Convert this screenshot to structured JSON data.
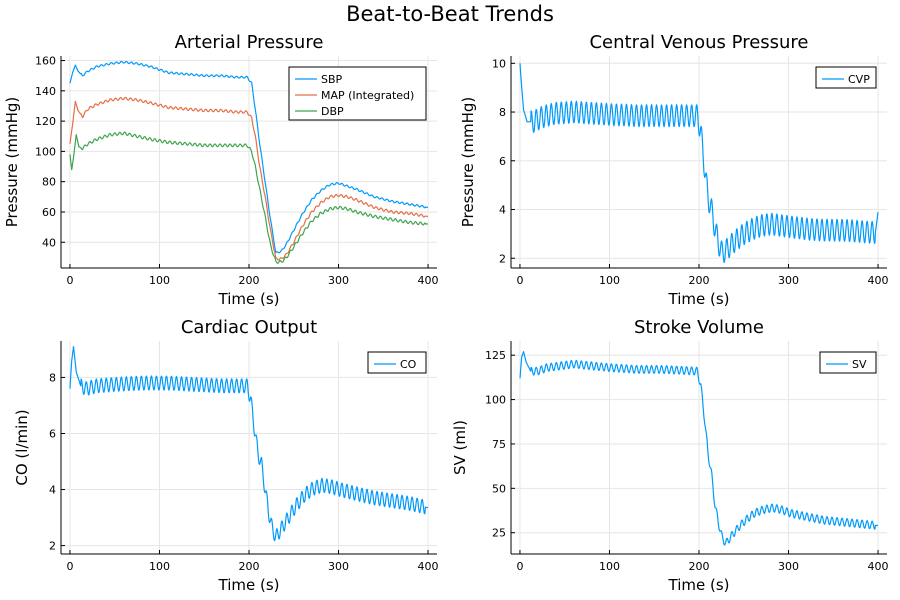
{
  "figure": {
    "title": "Beat-to-Beat Trends"
  },
  "chart_data": [
    {
      "type": "line",
      "title": "Arterial Pressure",
      "xlabel": "Time (s)",
      "ylabel": "Pressure (mmHg)",
      "xlim": [
        -10,
        410
      ],
      "ylim": [
        23,
        163
      ],
      "xticks": [
        0,
        100,
        200,
        300,
        400
      ],
      "yticks": [
        40,
        60,
        80,
        100,
        120,
        140,
        160
      ],
      "grid": true,
      "legend": "top-right",
      "series": [
        {
          "name": "SBP",
          "color": "#009AFA",
          "points": [
            [
              0,
              145
            ],
            [
              3,
              152
            ],
            [
              6,
              157
            ],
            [
              9,
              153
            ],
            [
              14,
              150
            ],
            [
              20,
              153
            ],
            [
              30,
              156
            ],
            [
              45,
              158
            ],
            [
              60,
              159
            ],
            [
              75,
              158
            ],
            [
              90,
              156
            ],
            [
              110,
              152
            ],
            [
              130,
              151
            ],
            [
              150,
              150
            ],
            [
              170,
              150
            ],
            [
              185,
              149
            ],
            [
              198,
              149
            ],
            [
              203,
              145
            ],
            [
              207,
              128
            ],
            [
              212,
              105
            ],
            [
              218,
              80
            ],
            [
              224,
              55
            ],
            [
              230,
              33
            ],
            [
              236,
              34
            ],
            [
              242,
              39
            ],
            [
              250,
              48
            ],
            [
              260,
              59
            ],
            [
              270,
              68
            ],
            [
              280,
              74
            ],
            [
              290,
              78
            ],
            [
              300,
              79
            ],
            [
              310,
              77
            ],
            [
              320,
              75
            ],
            [
              340,
              70
            ],
            [
              360,
              67
            ],
            [
              380,
              65
            ],
            [
              400,
              63
            ]
          ],
          "wiggle": 0.6
        },
        {
          "name": "MAP (Integrated)",
          "color": "#E36F47",
          "points": [
            [
              0,
              105
            ],
            [
              3,
              118
            ],
            [
              6,
              133
            ],
            [
              9,
              127
            ],
            [
              14,
              123
            ],
            [
              20,
              128
            ],
            [
              30,
              131
            ],
            [
              45,
              134
            ],
            [
              60,
              135
            ],
            [
              75,
              134
            ],
            [
              90,
              132
            ],
            [
              110,
              129
            ],
            [
              130,
              128
            ],
            [
              150,
              127
            ],
            [
              170,
              127
            ],
            [
              185,
              126
            ],
            [
              198,
              126
            ],
            [
              203,
              122
            ],
            [
              207,
              110
            ],
            [
              212,
              90
            ],
            [
              218,
              70
            ],
            [
              224,
              48
            ],
            [
              230,
              29
            ],
            [
              236,
              29
            ],
            [
              242,
              32
            ],
            [
              250,
              40
            ],
            [
              260,
              51
            ],
            [
              270,
              60
            ],
            [
              280,
              66
            ],
            [
              290,
              70
            ],
            [
              300,
              71
            ],
            [
              310,
              70
            ],
            [
              320,
              68
            ],
            [
              340,
              63
            ],
            [
              360,
              60
            ],
            [
              380,
              59
            ],
            [
              400,
              57
            ]
          ],
          "wiggle": 0.8
        },
        {
          "name": "DBP",
          "color": "#3EA44E",
          "points": [
            [
              0,
              98
            ],
            [
              2,
              88
            ],
            [
              4,
              96
            ],
            [
              7,
              111
            ],
            [
              10,
              103
            ],
            [
              14,
              102
            ],
            [
              20,
              105
            ],
            [
              30,
              108
            ],
            [
              45,
              111
            ],
            [
              60,
              112
            ],
            [
              75,
              110
            ],
            [
              90,
              108
            ],
            [
              110,
              106
            ],
            [
              130,
              105
            ],
            [
              150,
              104
            ],
            [
              170,
              104
            ],
            [
              185,
              104
            ],
            [
              198,
              104
            ],
            [
              203,
              100
            ],
            [
              207,
              90
            ],
            [
              212,
              75
            ],
            [
              218,
              57
            ],
            [
              224,
              38
            ],
            [
              230,
              27
            ],
            [
              236,
              27
            ],
            [
              242,
              30
            ],
            [
              250,
              37
            ],
            [
              260,
              46
            ],
            [
              270,
              54
            ],
            [
              280,
              59
            ],
            [
              290,
              62
            ],
            [
              300,
              63
            ],
            [
              310,
              62
            ],
            [
              320,
              60
            ],
            [
              340,
              57
            ],
            [
              360,
              55
            ],
            [
              380,
              53
            ],
            [
              400,
              52
            ]
          ],
          "wiggle": 0.9
        }
      ]
    },
    {
      "type": "line",
      "title": "Central Venous Pressure",
      "xlabel": "Time (s)",
      "ylabel": "Pressure (mmHg)",
      "xlim": [
        -10,
        410
      ],
      "ylim": [
        1.6,
        10.3
      ],
      "xticks": [
        0,
        100,
        200,
        300,
        400
      ],
      "yticks": [
        2,
        4,
        6,
        8,
        10
      ],
      "grid": true,
      "legend": "top-right",
      "series": [
        {
          "name": "CVP",
          "color": "#009AFA",
          "points": [
            [
              0,
              10
            ],
            [
              2,
              9
            ],
            [
              4,
              8.1
            ],
            [
              8,
              7.6
            ],
            [
              15,
              7.6
            ],
            [
              25,
              7.8
            ],
            [
              40,
              7.95
            ],
            [
              60,
              8.0
            ],
            [
              80,
              7.95
            ],
            [
              100,
              7.9
            ],
            [
              130,
              7.85
            ],
            [
              160,
              7.85
            ],
            [
              198,
              7.85
            ],
            [
              202,
              7.2
            ],
            [
              206,
              5.8
            ],
            [
              210,
              4.5
            ],
            [
              214,
              4.0
            ],
            [
              218,
              3.2
            ],
            [
              222,
              2.6
            ],
            [
              226,
              2.2
            ],
            [
              232,
              2.4
            ],
            [
              240,
              2.7
            ],
            [
              250,
              3.0
            ],
            [
              260,
              3.2
            ],
            [
              270,
              3.35
            ],
            [
              280,
              3.4
            ],
            [
              290,
              3.35
            ],
            [
              300,
              3.3
            ],
            [
              320,
              3.2
            ],
            [
              340,
              3.15
            ],
            [
              360,
              3.15
            ],
            [
              380,
              3.1
            ],
            [
              397,
              3.05
            ],
            [
              400,
              3.9
            ]
          ],
          "wiggle": 0.45
        }
      ]
    },
    {
      "type": "line",
      "title": "Cardiac Output",
      "xlabel": "Time (s)",
      "ylabel": "CO (l/min)",
      "xlim": [
        -10,
        410
      ],
      "ylim": [
        1.7,
        9.3
      ],
      "xticks": [
        0,
        100,
        200,
        300,
        400
      ],
      "yticks": [
        2,
        4,
        6,
        8
      ],
      "grid": true,
      "legend": "top-right",
      "series": [
        {
          "name": "CO",
          "color": "#009AFA",
          "points": [
            [
              0,
              7.6
            ],
            [
              2,
              8.6
            ],
            [
              4,
              9.1
            ],
            [
              7,
              8.2
            ],
            [
              12,
              7.7
            ],
            [
              18,
              7.6
            ],
            [
              30,
              7.7
            ],
            [
              50,
              7.75
            ],
            [
              80,
              7.8
            ],
            [
              110,
              7.8
            ],
            [
              140,
              7.75
            ],
            [
              170,
              7.7
            ],
            [
              198,
              7.7
            ],
            [
              202,
              7.2
            ],
            [
              206,
              6.2
            ],
            [
              210,
              5.3
            ],
            [
              214,
              4.9
            ],
            [
              218,
              4.0
            ],
            [
              222,
              3.2
            ],
            [
              226,
              2.6
            ],
            [
              230,
              2.3
            ],
            [
              236,
              2.6
            ],
            [
              244,
              3.0
            ],
            [
              252,
              3.4
            ],
            [
              262,
              3.8
            ],
            [
              272,
              4.05
            ],
            [
              282,
              4.15
            ],
            [
              292,
              4.1
            ],
            [
              302,
              4.0
            ],
            [
              320,
              3.85
            ],
            [
              340,
              3.7
            ],
            [
              360,
              3.6
            ],
            [
              380,
              3.5
            ],
            [
              400,
              3.35
            ]
          ],
          "wiggle": 0.25
        }
      ]
    },
    {
      "type": "line",
      "title": "Stroke Volume",
      "xlabel": "Time (s)",
      "ylabel": "SV (ml)",
      "xlim": [
        -10,
        410
      ],
      "ylim": [
        13,
        133
      ],
      "xticks": [
        0,
        100,
        200,
        300,
        400
      ],
      "yticks": [
        25,
        50,
        75,
        100,
        125
      ],
      "grid": true,
      "legend": "top-right",
      "series": [
        {
          "name": "SV",
          "color": "#009AFA",
          "points": [
            [
              0,
              112
            ],
            [
              2,
              124
            ],
            [
              4,
              127
            ],
            [
              7,
              121
            ],
            [
              12,
              116
            ],
            [
              20,
              116
            ],
            [
              30,
              118
            ],
            [
              45,
              119
            ],
            [
              60,
              120
            ],
            [
              80,
              119
            ],
            [
              100,
              118
            ],
            [
              130,
              117
            ],
            [
              160,
              117
            ],
            [
              198,
              116
            ],
            [
              202,
              108
            ],
            [
              206,
              90
            ],
            [
              210,
              70
            ],
            [
              214,
              58
            ],
            [
              218,
              40
            ],
            [
              222,
              30
            ],
            [
              226,
              22
            ],
            [
              230,
              19
            ],
            [
              236,
              23
            ],
            [
              244,
              28
            ],
            [
              252,
              32
            ],
            [
              262,
              36
            ],
            [
              272,
              38
            ],
            [
              282,
              39
            ],
            [
              292,
              38
            ],
            [
              302,
              36
            ],
            [
              320,
              34
            ],
            [
              340,
              32
            ],
            [
              360,
              31
            ],
            [
              380,
              30
            ],
            [
              400,
              29
            ]
          ],
          "wiggle": 2.2
        }
      ]
    }
  ]
}
